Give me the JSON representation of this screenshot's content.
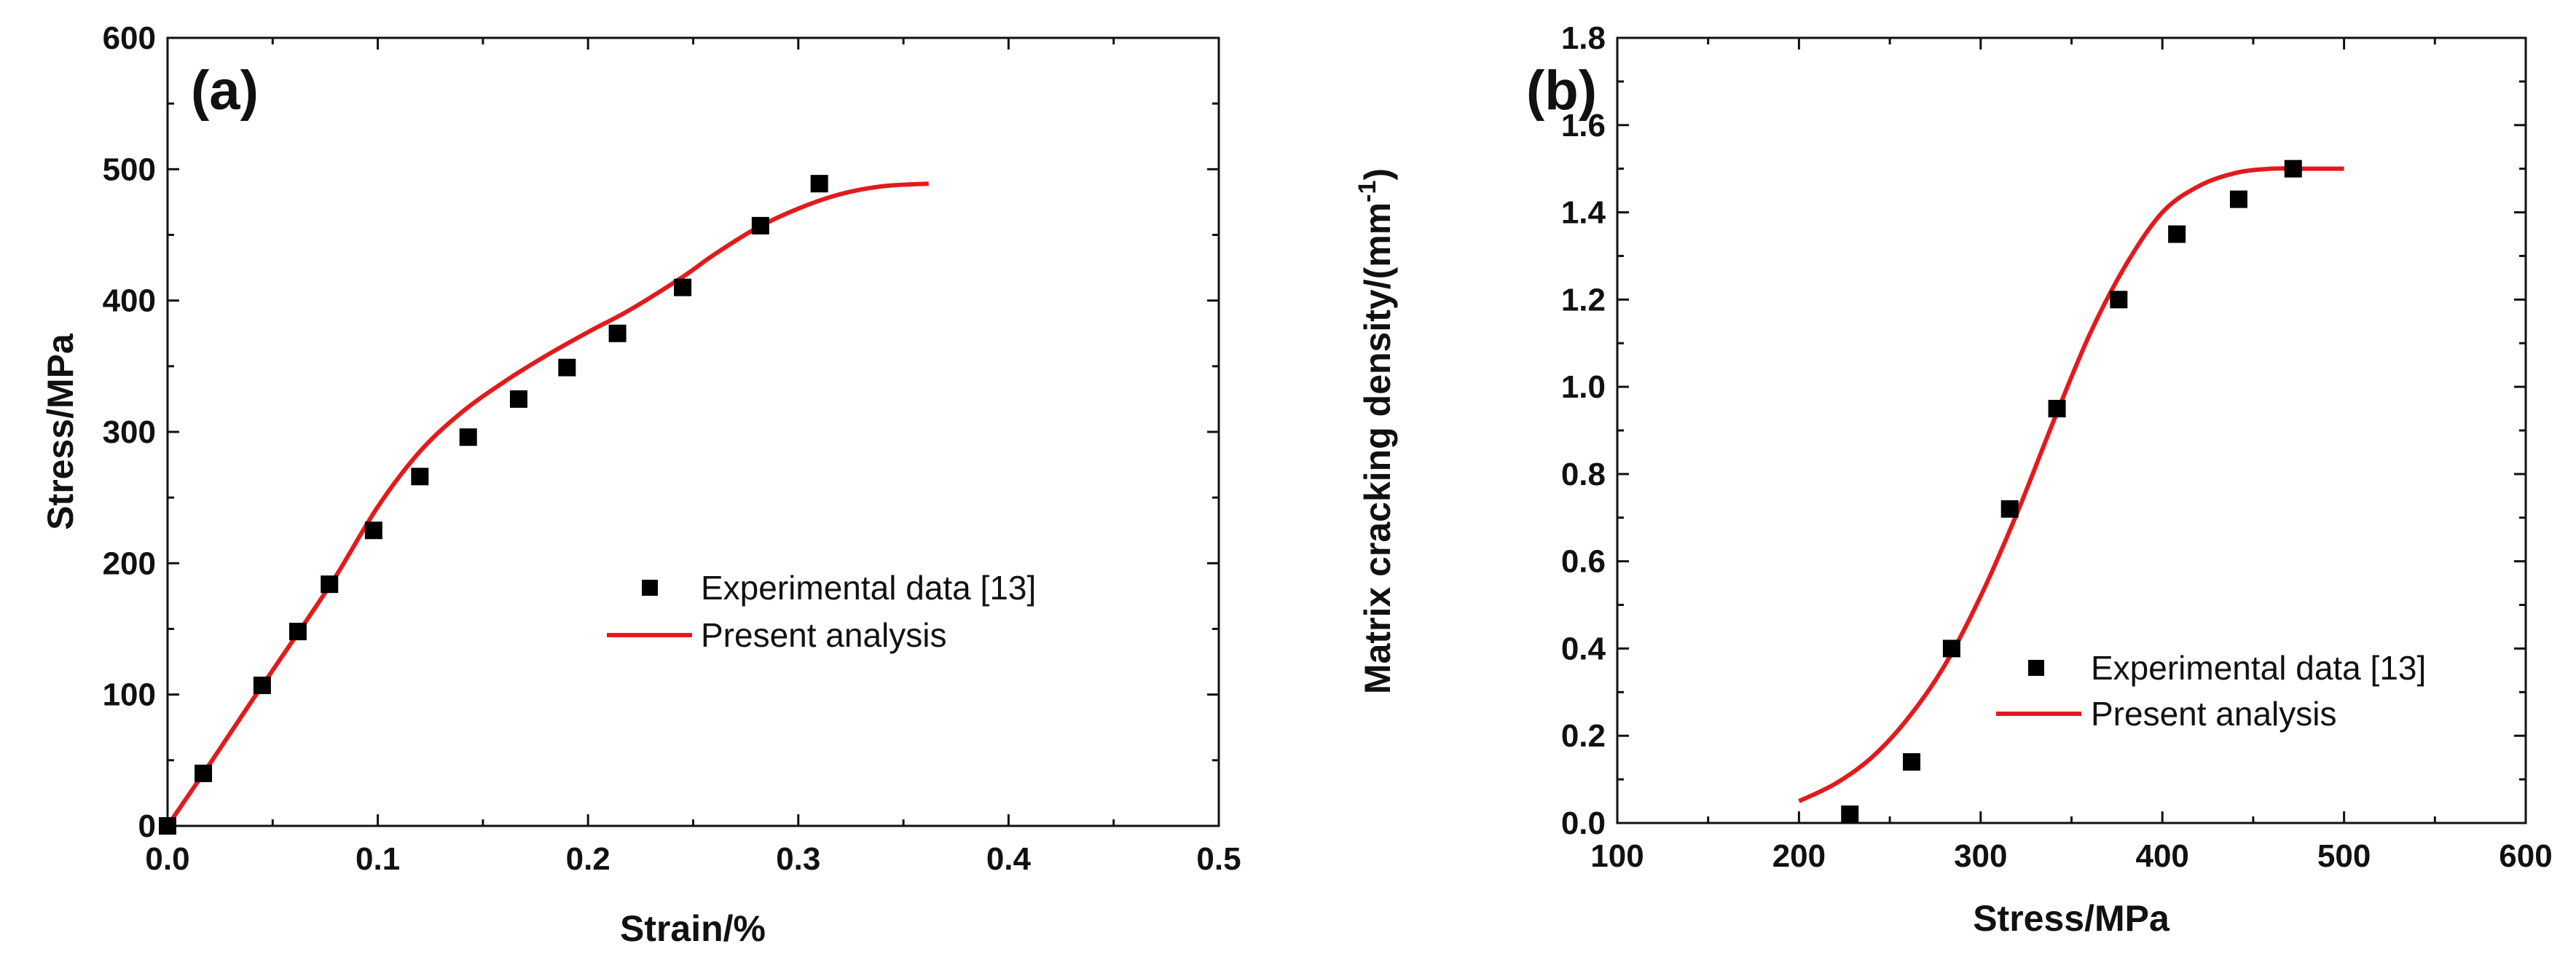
{
  "chart_data": [
    {
      "type": "scatter+line",
      "panel_label": "(a)",
      "xlabel": "Strain/%",
      "ylabel": "Stress/MPa",
      "xlim": [
        0,
        0.5
      ],
      "ylim": [
        0,
        600
      ],
      "x_ticks": [
        "0.0",
        "0.1",
        "0.2",
        "0.3",
        "0.4",
        "0.5"
      ],
      "y_ticks": [
        "0",
        "100",
        "200",
        "300",
        "400",
        "500",
        "600"
      ],
      "legend_position": "center-right",
      "series": [
        {
          "name": "Experimental data [13]",
          "kind": "scatter",
          "color": "#000000",
          "x": [
            0.0,
            0.017,
            0.045,
            0.062,
            0.077,
            0.098,
            0.12,
            0.143,
            0.167,
            0.19,
            0.214,
            0.245,
            0.282,
            0.31
          ],
          "y": [
            0,
            40,
            107,
            148,
            184,
            225,
            266,
            296,
            325,
            349,
            375,
            410,
            457,
            489
          ]
        },
        {
          "name": "Present analysis",
          "kind": "line",
          "color": "#e31a1c",
          "x": [
            0.0,
            0.02,
            0.04,
            0.06,
            0.08,
            0.1,
            0.12,
            0.14,
            0.16,
            0.18,
            0.2,
            0.22,
            0.245,
            0.26,
            0.28,
            0.3,
            0.32,
            0.34,
            0.362
          ],
          "y": [
            0,
            47,
            95,
            142,
            190,
            243,
            285,
            315,
            338,
            358,
            376,
            393,
            418,
            435,
            455,
            470,
            481,
            487,
            489
          ]
        }
      ]
    },
    {
      "type": "scatter+line",
      "panel_label": "(b)",
      "xlabel": "Stress/MPa",
      "ylabel": "Matrix cracking density/(mm",
      "ylabel_sup": "-1",
      "ylabel_end": ")",
      "xlim": [
        100,
        600
      ],
      "ylim": [
        0,
        1.8
      ],
      "x_ticks": [
        "100",
        "200",
        "300",
        "400",
        "500",
        "600"
      ],
      "y_ticks": [
        "0.0",
        "0.2",
        "0.4",
        "0.6",
        "0.8",
        "1.0",
        "1.2",
        "1.4",
        "1.6",
        "1.8"
      ],
      "legend_position": "bottom-right",
      "series": [
        {
          "name": "Experimental data [13]",
          "kind": "scatter",
          "color": "#000000",
          "x": [
            228,
            262,
            284,
            316,
            342,
            376,
            408,
            442,
            472
          ],
          "y": [
            0.02,
            0.14,
            0.4,
            0.72,
            0.95,
            1.2,
            1.35,
            1.43,
            1.5
          ]
        },
        {
          "name": "Present analysis",
          "kind": "line",
          "color": "#e31a1c",
          "x": [
            200,
            220,
            240,
            260,
            280,
            300,
            320,
            340,
            360,
            380,
            400,
            420,
            440,
            460,
            480,
            500
          ],
          "y": [
            0.05,
            0.09,
            0.15,
            0.24,
            0.36,
            0.52,
            0.71,
            0.92,
            1.12,
            1.28,
            1.4,
            1.46,
            1.49,
            1.5,
            1.5,
            1.5
          ]
        }
      ]
    }
  ]
}
